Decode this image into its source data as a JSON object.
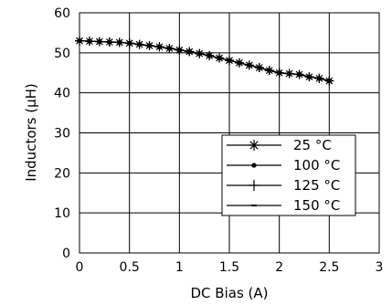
{
  "chart_data": {
    "type": "line",
    "title": "",
    "xlabel": "DC Bias (A)",
    "ylabel": "Inductors (µH)",
    "xlim": [
      0,
      3
    ],
    "ylim": [
      0,
      60
    ],
    "xticks": [
      "0",
      "0.5",
      "1",
      "1.5",
      "2",
      "2.5",
      "3"
    ],
    "yticks": [
      "0",
      "10",
      "20",
      "30",
      "40",
      "50",
      "60"
    ],
    "grid": true,
    "legend_position": "lower-right",
    "x": [
      0.0,
      0.1,
      0.2,
      0.3,
      0.4,
      0.5,
      0.6,
      0.7,
      0.8,
      0.9,
      1.0,
      1.1,
      1.2,
      1.3,
      1.4,
      1.5,
      1.6,
      1.7,
      1.8,
      1.9,
      2.0,
      2.1,
      2.2,
      2.3,
      2.4,
      2.5
    ],
    "series": [
      {
        "name": "25 °C",
        "marker": "asterisk",
        "values": [
          53.0,
          52.9,
          52.8,
          52.7,
          52.6,
          52.4,
          52.1,
          51.8,
          51.5,
          51.1,
          50.7,
          50.3,
          49.8,
          49.3,
          48.7,
          48.1,
          47.5,
          46.9,
          46.3,
          45.6,
          45.0,
          44.8,
          44.6,
          44.0,
          43.6,
          43.0
        ]
      },
      {
        "name": "100 °C",
        "marker": "dot",
        "values": [
          53.0,
          52.9,
          52.8,
          52.7,
          52.6,
          52.4,
          52.1,
          51.8,
          51.5,
          51.1,
          50.7,
          50.3,
          49.8,
          49.3,
          48.7,
          48.1,
          47.5,
          46.9,
          46.3,
          45.6,
          45.0,
          44.8,
          44.6,
          44.0,
          43.6,
          43.0
        ]
      },
      {
        "name": "125 °C",
        "marker": "plus",
        "values": [
          53.0,
          52.9,
          52.8,
          52.7,
          52.6,
          52.4,
          52.1,
          51.8,
          51.5,
          51.1,
          50.7,
          50.3,
          49.8,
          49.3,
          48.7,
          48.1,
          47.5,
          46.9,
          46.3,
          45.6,
          45.0,
          44.8,
          44.6,
          44.0,
          43.6,
          43.0
        ]
      },
      {
        "name": "150 °C",
        "marker": "dash",
        "values": [
          53.0,
          52.9,
          52.8,
          52.7,
          52.6,
          52.4,
          52.1,
          51.8,
          51.5,
          51.1,
          50.7,
          50.3,
          49.8,
          49.3,
          48.7,
          48.1,
          47.5,
          46.9,
          46.3,
          45.6,
          45.0,
          44.8,
          44.6,
          44.0,
          43.6,
          43.0
        ]
      }
    ],
    "colors": {
      "line": "#000000",
      "grid": "#000000",
      "background": "#ffffff"
    }
  }
}
